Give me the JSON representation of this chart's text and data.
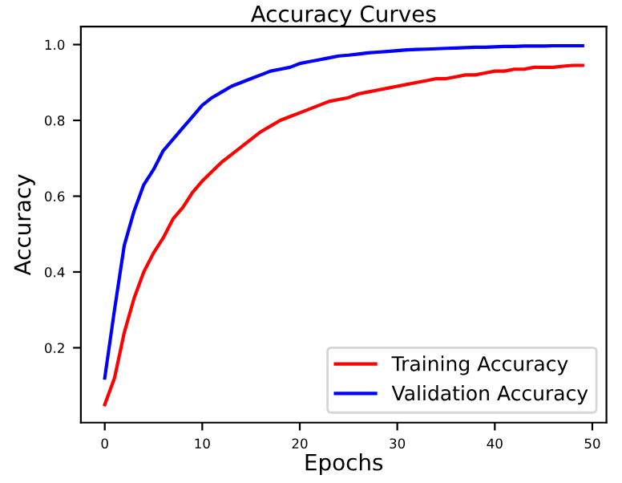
{
  "chart_data": {
    "type": "line",
    "title": "Accuracy Curves",
    "xlabel": "Epochs",
    "ylabel": "Accuracy",
    "x": [
      0,
      1,
      2,
      3,
      4,
      5,
      6,
      7,
      8,
      9,
      10,
      11,
      12,
      13,
      14,
      15,
      16,
      17,
      18,
      19,
      20,
      21,
      22,
      23,
      24,
      25,
      26,
      27,
      28,
      29,
      30,
      31,
      32,
      33,
      34,
      35,
      36,
      37,
      38,
      39,
      40,
      41,
      42,
      43,
      44,
      45,
      46,
      47,
      48,
      49
    ],
    "series": [
      {
        "name": "Training Accuracy",
        "color": "#ff0000",
        "values": [
          0.05,
          0.12,
          0.24,
          0.33,
          0.4,
          0.45,
          0.49,
          0.54,
          0.57,
          0.61,
          0.64,
          0.665,
          0.69,
          0.71,
          0.73,
          0.75,
          0.77,
          0.785,
          0.8,
          0.81,
          0.82,
          0.83,
          0.84,
          0.85,
          0.855,
          0.86,
          0.87,
          0.875,
          0.88,
          0.885,
          0.89,
          0.895,
          0.9,
          0.905,
          0.91,
          0.91,
          0.915,
          0.92,
          0.92,
          0.925,
          0.93,
          0.93,
          0.935,
          0.935,
          0.94,
          0.94,
          0.94,
          0.943,
          0.945,
          0.945
        ]
      },
      {
        "name": "Validation Accuracy",
        "color": "#0000ff",
        "values": [
          0.12,
          0.3,
          0.47,
          0.56,
          0.63,
          0.67,
          0.72,
          0.75,
          0.78,
          0.81,
          0.84,
          0.86,
          0.875,
          0.89,
          0.9,
          0.91,
          0.92,
          0.93,
          0.935,
          0.94,
          0.95,
          0.955,
          0.96,
          0.965,
          0.97,
          0.972,
          0.975,
          0.978,
          0.98,
          0.982,
          0.984,
          0.986,
          0.987,
          0.988,
          0.989,
          0.99,
          0.991,
          0.992,
          0.993,
          0.993,
          0.994,
          0.995,
          0.995,
          0.996,
          0.996,
          0.996,
          0.997,
          0.997,
          0.997,
          0.997
        ]
      }
    ],
    "xlim": [
      -2.45,
      51.45
    ],
    "ylim": [
      0.0025,
      1.0475
    ],
    "xticks": [
      0,
      10,
      20,
      30,
      40,
      50
    ],
    "yticks": [
      0.2,
      0.4,
      0.6,
      0.8,
      {
        "value": 1.0,
        "label": "1.0"
      }
    ],
    "grid": false,
    "legend": "bottom right",
    "line_style": "solid"
  }
}
